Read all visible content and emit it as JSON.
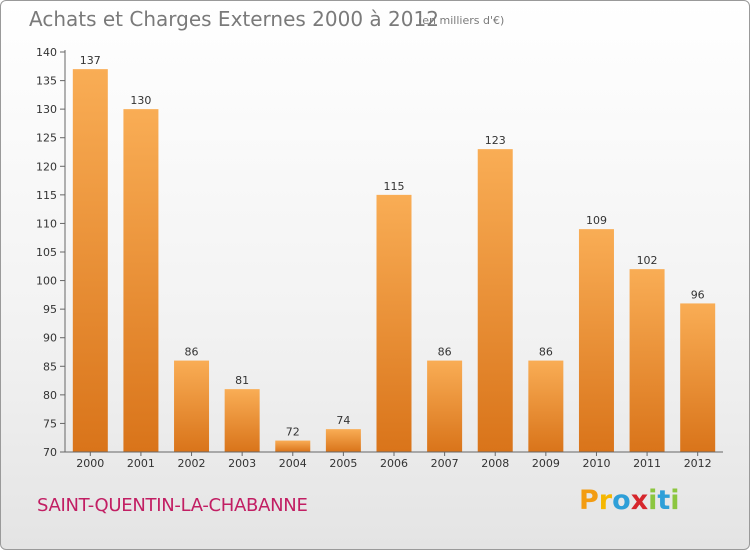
{
  "header": {
    "title": "Achats et Charges Externes 2000 à 2012",
    "subtitle": "(en milliers d'€)"
  },
  "footer": {
    "place": "SAINT-QUENTIN-LA-CHABANNE",
    "brand": "Proxiti",
    "brand_letters": [
      "P",
      "r",
      "o",
      "x",
      "i",
      "t",
      "i"
    ]
  },
  "colors": {
    "bar_top": "#f9ad55",
    "bar_bottom": "#d9741a",
    "axis": "#666666",
    "grid": "#dddddd",
    "place_text": "#c21e63",
    "title_text": "#7a7a7a"
  },
  "chart_data": {
    "type": "bar",
    "title": "Achats et Charges Externes 2000 à 2012",
    "subtitle": "(en milliers d'€)",
    "xlabel": "",
    "ylabel": "",
    "categories": [
      "2000",
      "2001",
      "2002",
      "2003",
      "2004",
      "2005",
      "2006",
      "2007",
      "2008",
      "2009",
      "2010",
      "2011",
      "2012"
    ],
    "values": [
      137,
      130,
      86,
      81,
      72,
      74,
      115,
      86,
      123,
      86,
      109,
      102,
      96
    ],
    "ylim": [
      70,
      140
    ],
    "yticks": [
      70,
      75,
      80,
      85,
      90,
      95,
      100,
      105,
      110,
      115,
      120,
      125,
      130,
      135,
      140
    ],
    "grid": false,
    "legend": "none"
  }
}
